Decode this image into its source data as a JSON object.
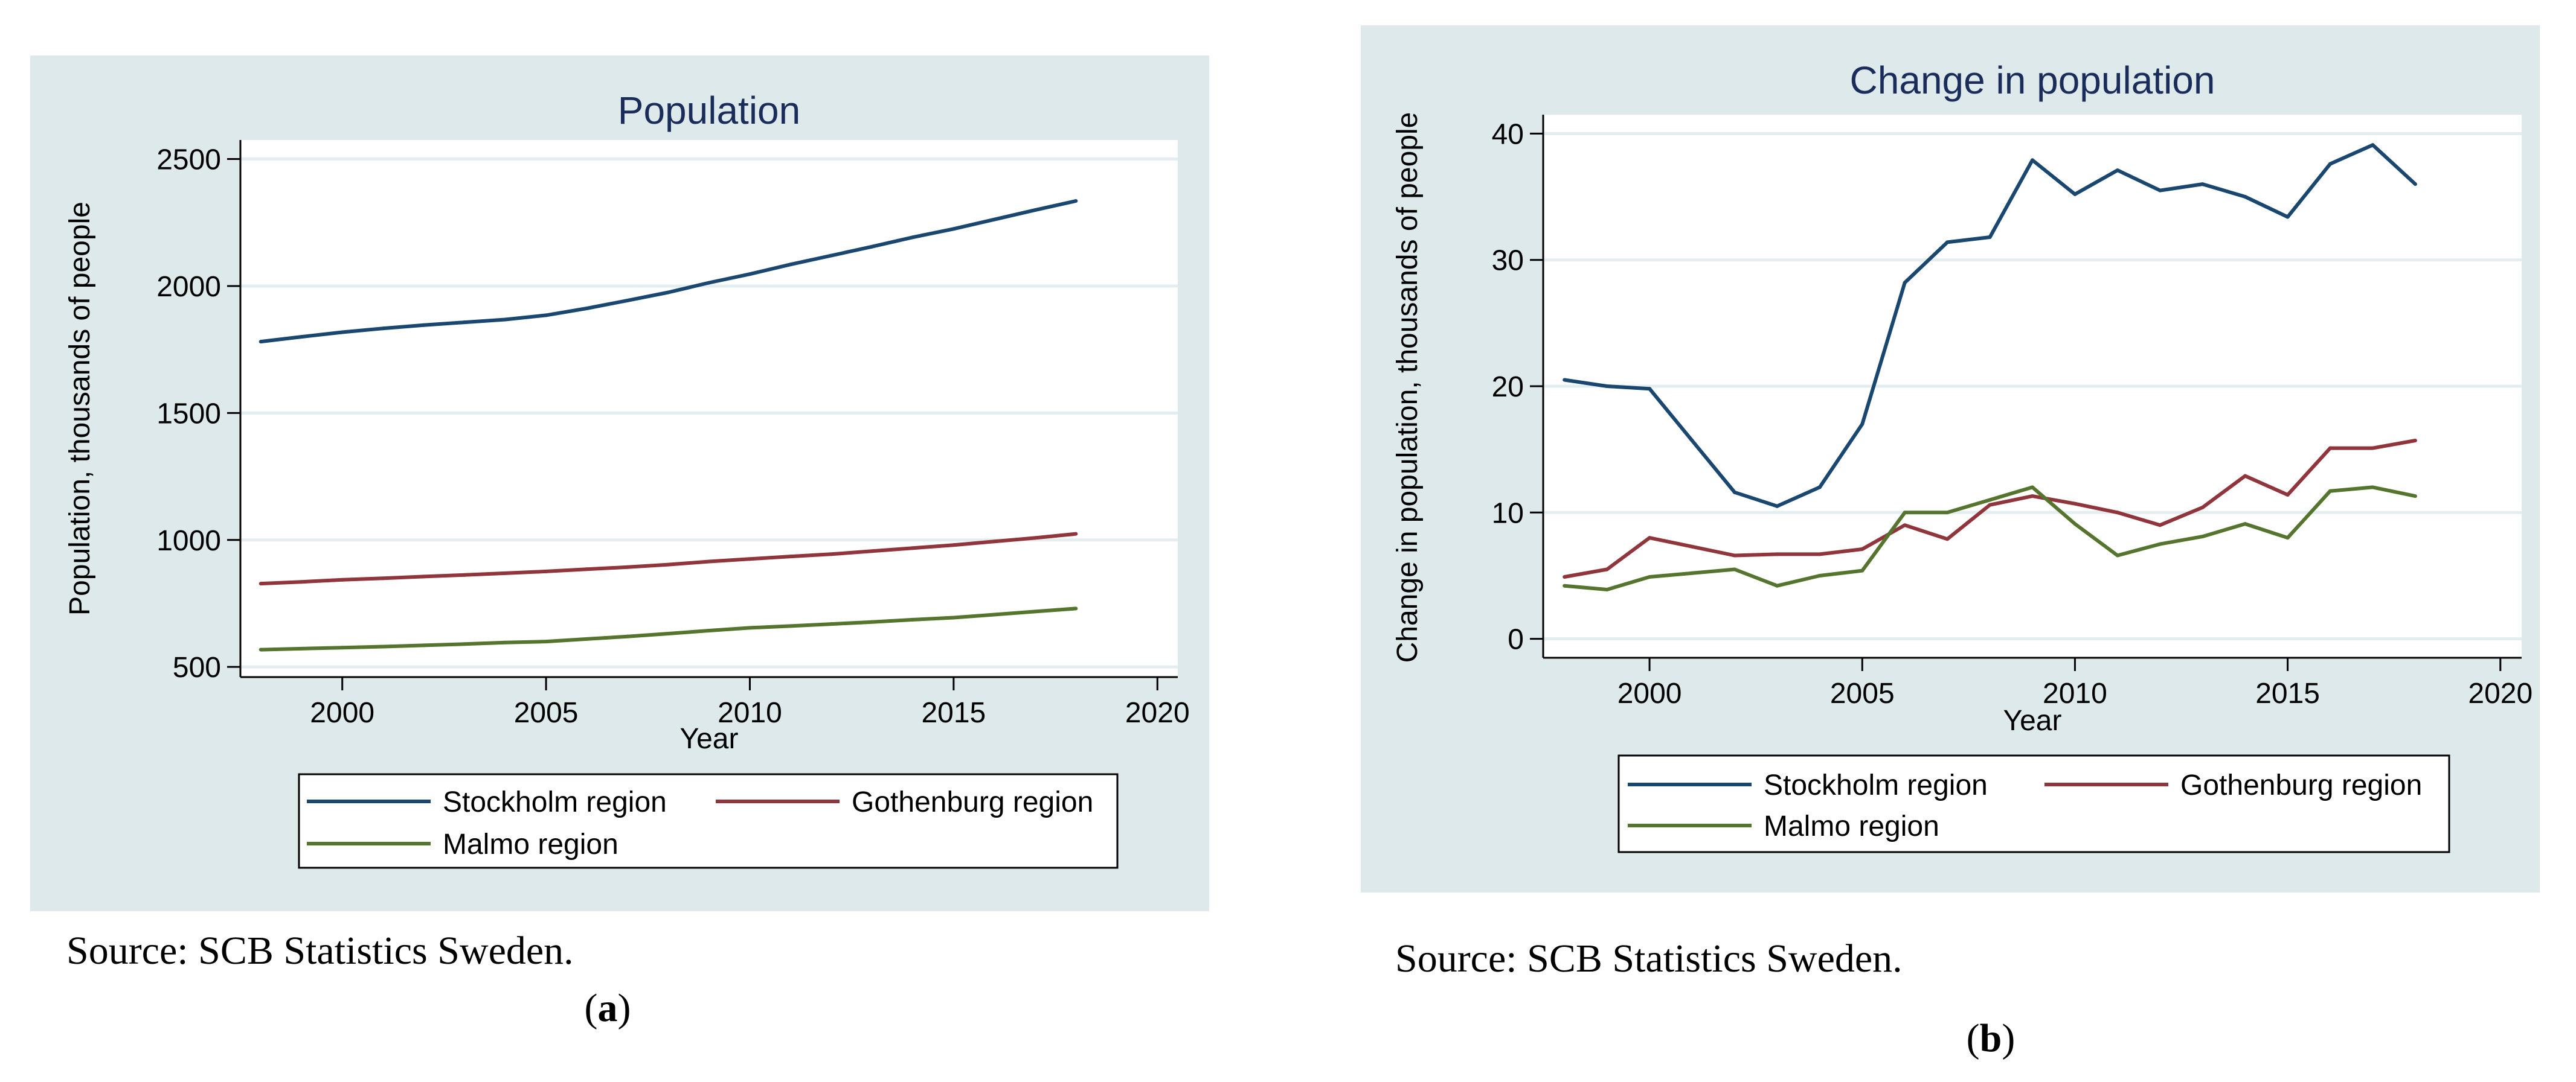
{
  "figure": {
    "colors": {
      "panel_bg": "#dde9ea",
      "plot_bg": "#ffffff",
      "grid": "#e3eef0",
      "title": "#1a2d5a",
      "stockholm": "#1a476f",
      "gothenburg": "#90353b",
      "malmo": "#55752f"
    }
  },
  "chart_data": [
    {
      "type": "line",
      "title": "Population",
      "xlabel": "Year",
      "ylabel": "Population, thousands of people",
      "xlim": [
        1997.5,
        2020.5
      ],
      "ylim": [
        460,
        2575
      ],
      "xticks": [
        2000,
        2005,
        2010,
        2015,
        2020
      ],
      "yticks": [
        500,
        1000,
        1500,
        2000,
        2500
      ],
      "x": [
        1998,
        1999,
        2000,
        2001,
        2002,
        2003,
        2004,
        2005,
        2006,
        2007,
        2008,
        2009,
        2010,
        2011,
        2012,
        2013,
        2014,
        2015,
        2016,
        2017,
        2018
      ],
      "series": [
        {
          "name": "Stockholm region",
          "color": "#1a476f",
          "values": [
            1781,
            1800,
            1818,
            1833,
            1846,
            1857,
            1868,
            1885,
            1912,
            1943,
            1975,
            2013,
            2047,
            2085,
            2120,
            2155,
            2192,
            2225,
            2262,
            2299,
            2335
          ]
        },
        {
          "name": "Gothenburg region",
          "color": "#90353b",
          "values": [
            828,
            835,
            843,
            849,
            856,
            862,
            869,
            876,
            885,
            893,
            903,
            915,
            925,
            935,
            944,
            956,
            968,
            980,
            994,
            1008,
            1024
          ]
        },
        {
          "name": "Malmo region",
          "color": "#55752f",
          "values": [
            568,
            572,
            576,
            580,
            585,
            590,
            596,
            600,
            610,
            620,
            631,
            643,
            654,
            661,
            669,
            677,
            686,
            694,
            706,
            718,
            730
          ]
        }
      ],
      "legend": {
        "placement": "below",
        "items": [
          "Stockholm region",
          "Gothenburg region",
          "Malmo region"
        ]
      },
      "source": "Source: SCB Statistics Sweden.",
      "caption_prefix": "(",
      "caption_letter": "a",
      "caption_suffix": ")"
    },
    {
      "type": "line",
      "title": "Change in population",
      "xlabel": "Year",
      "ylabel": "Change in population, thousands of people",
      "xlim": [
        1997.5,
        2020.5
      ],
      "ylim": [
        -1.5,
        41.5
      ],
      "xticks": [
        2000,
        2005,
        2010,
        2015,
        2020
      ],
      "yticks": [
        0,
        10,
        20,
        30,
        40
      ],
      "x": [
        1998,
        1999,
        2000,
        2001,
        2002,
        2003,
        2004,
        2005,
        2006,
        2007,
        2008,
        2009,
        2010,
        2011,
        2012,
        2013,
        2014,
        2015,
        2016,
        2017,
        2018
      ],
      "series": [
        {
          "name": "Stockholm region",
          "color": "#1a476f",
          "values": [
            20.5,
            20.0,
            19.8,
            15.7,
            11.6,
            10.5,
            12.0,
            17.0,
            28.2,
            31.4,
            31.8,
            37.9,
            35.2,
            37.1,
            35.5,
            36.0,
            35.0,
            33.4,
            37.6,
            39.1,
            36.0
          ]
        },
        {
          "name": "Gothenburg region",
          "color": "#90353b",
          "values": [
            4.9,
            5.5,
            8.0,
            7.3,
            6.6,
            6.7,
            6.7,
            7.1,
            9.0,
            7.9,
            10.6,
            11.3,
            10.7,
            10.0,
            9.0,
            10.4,
            12.9,
            11.4,
            15.1,
            15.1,
            15.7
          ]
        },
        {
          "name": "Malmo region",
          "color": "#55752f",
          "values": [
            4.2,
            3.9,
            4.9,
            5.2,
            5.5,
            4.2,
            5.0,
            5.4,
            10.0,
            10.0,
            11.0,
            12.0,
            9.1,
            6.6,
            7.5,
            8.1,
            9.1,
            8.0,
            11.7,
            12.0,
            11.3
          ]
        }
      ],
      "legend": {
        "placement": "below",
        "items": [
          "Stockholm region",
          "Gothenburg region",
          "Malmo region"
        ]
      },
      "source": "Source: SCB Statistics Sweden.",
      "caption_prefix": "(",
      "caption_letter": "b",
      "caption_suffix": ")"
    }
  ]
}
